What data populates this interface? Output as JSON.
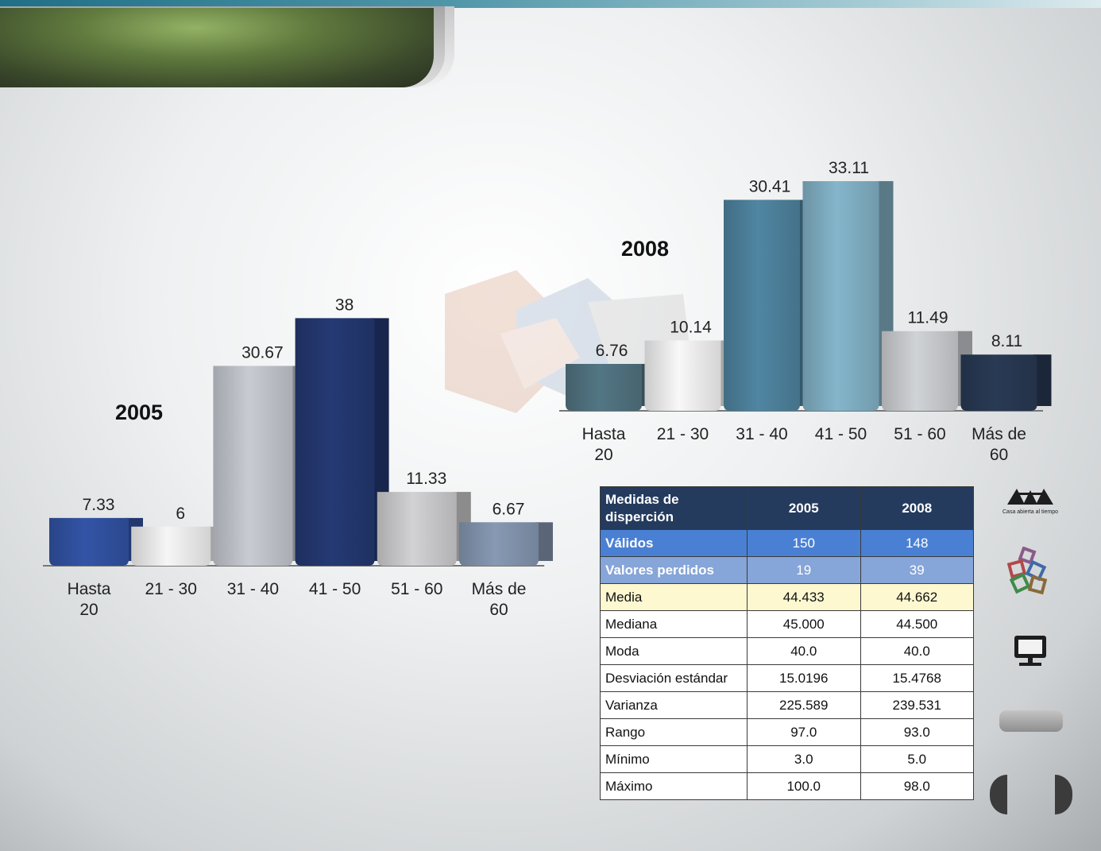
{
  "chart_data": [
    {
      "type": "bar",
      "year_label": "2005",
      "categories": [
        "Hasta 20",
        "21 - 30",
        "31 - 40",
        "41 - 50",
        "51 - 60",
        "Más de 60"
      ],
      "category_lines": [
        [
          "Hasta",
          "20"
        ],
        [
          "21 - 30"
        ],
        [
          "31 - 40"
        ],
        [
          "41 - 50"
        ],
        [
          "51 - 60"
        ],
        [
          "Más de",
          "60"
        ]
      ],
      "values": [
        7.33,
        6,
        30.67,
        38,
        11.33,
        6.67
      ],
      "value_labels": [
        "7.33",
        "6",
        "30.67",
        "38",
        "11.33",
        "6.67"
      ],
      "colors": [
        "#2f4e9a",
        "#e4e4e4",
        "#b9bcc3",
        "#22356b",
        "#c2c2c4",
        "#7d8ea6"
      ]
    },
    {
      "type": "bar",
      "year_label": "2008",
      "categories": [
        "Hasta 20",
        "21 - 30",
        "31 - 40",
        "41 - 50",
        "51 - 60",
        "Más de 60"
      ],
      "category_lines": [
        [
          "Hasta",
          "20"
        ],
        [
          "21 - 30"
        ],
        [
          "31 - 40"
        ],
        [
          "41 - 50"
        ],
        [
          "51 - 60"
        ],
        [
          "Más de",
          "60"
        ]
      ],
      "values": [
        6.76,
        10.14,
        30.41,
        33.11,
        11.49,
        8.11
      ],
      "value_labels": [
        "6.76",
        "10.14",
        "30.41",
        "33.11",
        "11.49",
        "8.11"
      ],
      "colors": [
        "#4d6d7a",
        "#e6e6e6",
        "#4a7c96",
        "#7ba8bb",
        "#c1c3c6",
        "#26364e"
      ]
    }
  ],
  "table": {
    "header": [
      "Medidas de disperción",
      "2005",
      "2008"
    ],
    "rows": [
      {
        "label": "Válidos",
        "v2005": "150",
        "v2008": "148"
      },
      {
        "label": "Valores perdidos",
        "v2005": "19",
        "v2008": "39"
      },
      {
        "label": "Media",
        "v2005": "44.433",
        "v2008": "44.662"
      },
      {
        "label": "Mediana",
        "v2005": "45.000",
        "v2008": "44.500"
      },
      {
        "label": "Moda",
        "v2005": "40.0",
        "v2008": "40.0"
      },
      {
        "label": "Desviación estándar",
        "v2005": "15.0196",
        "v2008": "15.4768"
      },
      {
        "label": "Varianza",
        "v2005": "225.589",
        "v2008": "239.531"
      },
      {
        "label": "Rango",
        "v2005": "97.0",
        "v2008": "93.0"
      },
      {
        "label": "Mínimo",
        "v2005": "3.0",
        "v2008": "5.0"
      },
      {
        "label": "Máximo",
        "v2005": "100.0",
        "v2008": "98.0"
      }
    ]
  },
  "side": {
    "logo_text": "UAM",
    "logo_motto": "Casa abierta al tiempo",
    "icons": [
      "uam-logo-icon",
      "cubes-icon",
      "monitor-icon"
    ]
  }
}
